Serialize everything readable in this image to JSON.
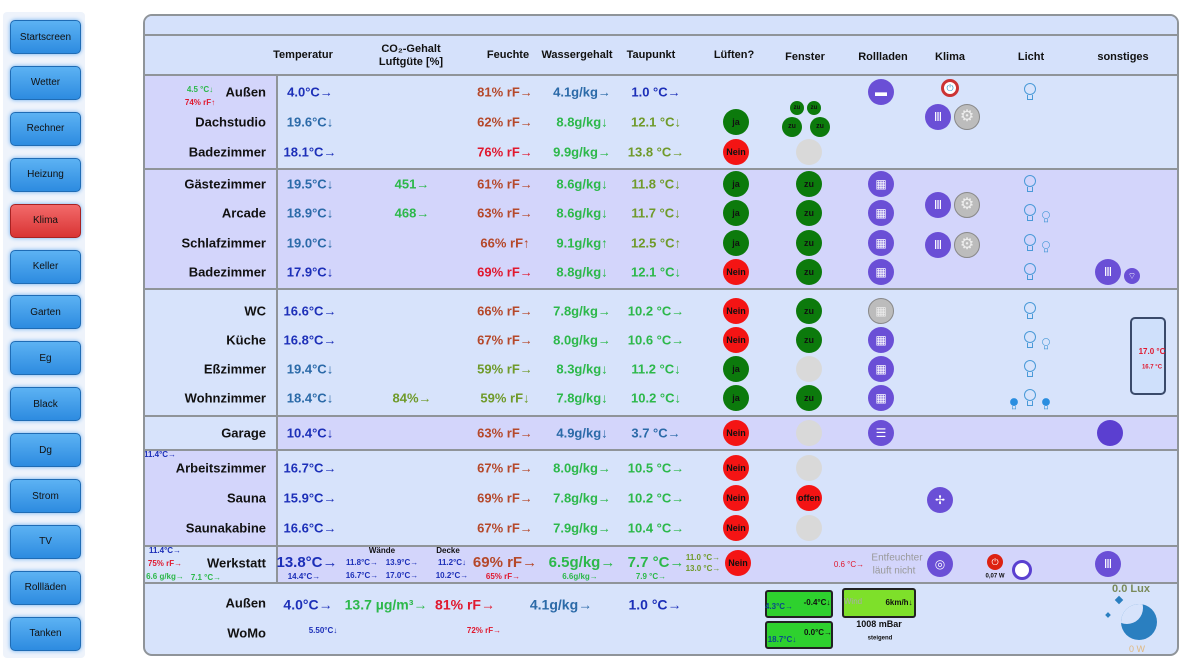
{
  "nav": [
    "Startscreen",
    "Wetter",
    "Rechner",
    "Heizung",
    "Klima",
    "Keller",
    "Garten",
    "Eg",
    "Black",
    "Dg",
    "Strom",
    "TV",
    "Rollläden",
    "Tanken"
  ],
  "nav_active": "Klima",
  "headers": {
    "temp": "Temperatur",
    "co2": "CO₂-Gehalt",
    "co2_sub": "Luftgüte [%]",
    "hum": "Feuchte",
    "water": "Wassergehalt",
    "dew": "Taupunkt",
    "luft": "Lüften?",
    "fenster": "Fenster",
    "roll": "Rollladen",
    "klima": "Klima",
    "licht": "Licht",
    "sonst": "sonstiges"
  },
  "colors": {
    "blue": "#1c2fb8",
    "teal": "#2b6aa8",
    "red": "#e0182e",
    "brown": "#b5482a",
    "green": "#2cb84a",
    "olive": "#6f9a2a",
    "ja": "#0c7a0c",
    "nein": "#f41414",
    "grey": "#d9d9d9",
    "accent": "#6a4fd6"
  },
  "rows": [
    {
      "name": "Außen",
      "temp": [
        "4.0°C→",
        "blue"
      ],
      "co2": null,
      "hum": [
        "81% rF→",
        "brown"
      ],
      "water": [
        "4.1g/kg→",
        "teal"
      ],
      "dew": [
        "1.0 °C→",
        "blue"
      ],
      "luft": null,
      "fenster": null,
      "roll": "shutter-icon",
      "klima": "power-icon",
      "licht": 1,
      "extra": [
        "4.5 °C↓",
        "74% rF↑"
      ]
    },
    {
      "name": "Dachstudio",
      "temp": [
        "19.6°C↓",
        "teal"
      ],
      "co2": null,
      "hum": [
        "62% rF→",
        "brown"
      ],
      "water": [
        "8.8g/kg↓",
        "green"
      ],
      "dew": [
        "12.1 °C↓",
        "olive"
      ],
      "luft": "ja",
      "fenster": "zu4",
      "klima": "radiator"
    },
    {
      "name": "Badezimmer",
      "temp": [
        "18.1°C→",
        "blue"
      ],
      "co2": null,
      "hum": [
        "76% rF→",
        "red"
      ],
      "water": [
        "9.9g/kg→",
        "green"
      ],
      "dew": [
        "13.8 °C→",
        "olive"
      ],
      "luft": "Nein",
      "fenster": "grey"
    },
    {
      "name": "Gästezimmer",
      "temp": [
        "19.5°C↓",
        "teal"
      ],
      "co2": [
        "451→",
        "green"
      ],
      "hum": [
        "61% rF→",
        "brown"
      ],
      "water": [
        "8.6g/kg↓",
        "green"
      ],
      "dew": [
        "11.8 °C↓",
        "olive"
      ],
      "luft": "ja",
      "fenster": "zu",
      "roll": "window-icon",
      "licht": 1
    },
    {
      "name": "Arcade",
      "temp": [
        "18.9°C↓",
        "teal"
      ],
      "co2": [
        "468→",
        "green"
      ],
      "hum": [
        "63% rF→",
        "brown"
      ],
      "water": [
        "8.6g/kg↓",
        "green"
      ],
      "dew": [
        "11.7 °C↓",
        "olive"
      ],
      "luft": "ja",
      "fenster": "zu",
      "roll": "window-icon",
      "klima": "radiator",
      "licht": 2
    },
    {
      "name": "Schlafzimmer",
      "temp": [
        "19.0°C↓",
        "teal"
      ],
      "co2": null,
      "hum": [
        "66% rF↑",
        "brown"
      ],
      "water": [
        "9.1g/kg↑",
        "green"
      ],
      "dew": [
        "12.5 °C↑",
        "olive"
      ],
      "luft": "ja",
      "fenster": "zu",
      "roll": "window-icon",
      "klima": "radiator",
      "licht": 2
    },
    {
      "name": "Badezimmer",
      "temp": [
        "17.9°C↓",
        "blue"
      ],
      "co2": null,
      "hum": [
        "69% rF→",
        "red"
      ],
      "water": [
        "8.8g/kg↓",
        "green"
      ],
      "dew": [
        "12.1 °C↓",
        "green"
      ],
      "luft": "Nein",
      "fenster": "zu",
      "roll": "window-icon",
      "licht": 1,
      "sonst": "radiator-icon"
    },
    {
      "name": "WC",
      "temp": [
        "16.6°C→",
        "blue"
      ],
      "co2": null,
      "hum": [
        "66% rF→",
        "brown"
      ],
      "water": [
        "7.8g/kg→",
        "green"
      ],
      "dew": [
        "10.2 °C→",
        "green"
      ],
      "luft": "Nein",
      "fenster": "zu",
      "roll": "window-grey-icon",
      "licht": 1
    },
    {
      "name": "Küche",
      "temp": [
        "16.8°C→",
        "blue"
      ],
      "co2": null,
      "hum": [
        "67% rF→",
        "brown"
      ],
      "water": [
        "8.0g/kg→",
        "green"
      ],
      "dew": [
        "10.6 °C→",
        "green"
      ],
      "luft": "Nein",
      "fenster": "zu",
      "roll": "window-icon",
      "licht": 2
    },
    {
      "name": "Eßzimmer",
      "temp": [
        "19.4°C↓",
        "teal"
      ],
      "co2": null,
      "hum": [
        "59% rF→",
        "olive"
      ],
      "water": [
        "8.3g/kg↓",
        "green"
      ],
      "dew": [
        "11.2 °C↓",
        "green"
      ],
      "luft": "ja",
      "fenster": "grey",
      "roll": "window-icon",
      "licht": 1
    },
    {
      "name": "Wohnzimmer",
      "temp": [
        "18.4°C↓",
        "teal"
      ],
      "co2": [
        "84%→",
        "olive"
      ],
      "hum": [
        "59% rF↓",
        "olive"
      ],
      "water": [
        "7.8g/kg↓",
        "green"
      ],
      "dew": [
        "10.2 °C↓",
        "green"
      ],
      "luft": "ja",
      "fenster": "zu",
      "roll": "window-icon",
      "licht": 3
    },
    {
      "name": "Garage",
      "temp": [
        "10.4°C↓",
        "blue"
      ],
      "co2": null,
      "hum": [
        "63% rF→",
        "brown"
      ],
      "water": [
        "4.9g/kg↓",
        "teal"
      ],
      "dew": [
        "3.7 °C→",
        "teal"
      ],
      "luft": "Nein",
      "fenster": "grey",
      "roll": "garage-door-icon",
      "sonst": "toggle-icon"
    },
    {
      "name": "Arbeitszimmer",
      "temp": [
        "16.7°C→",
        "blue"
      ],
      "co2": null,
      "hum": [
        "67% rF→",
        "brown"
      ],
      "water": [
        "8.0g/kg→",
        "green"
      ],
      "dew": [
        "10.5 °C→",
        "green"
      ],
      "luft": "Nein",
      "fenster": "grey",
      "extra": [
        "11.4°C→"
      ]
    },
    {
      "name": "Sauna",
      "temp": [
        "15.9°C→",
        "blue"
      ],
      "co2": null,
      "hum": [
        "69% rF→",
        "brown"
      ],
      "water": [
        "7.8g/kg→",
        "green"
      ],
      "dew": [
        "10.2 °C→",
        "green"
      ],
      "luft": "Nein",
      "fenster": "offen",
      "klima": "fan"
    },
    {
      "name": "Saunakabine",
      "temp": [
        "16.6°C→",
        "blue"
      ],
      "co2": null,
      "hum": [
        "67% rF→",
        "brown"
      ],
      "water": [
        "7.9g/kg→",
        "green"
      ],
      "dew": [
        "10.4 °C→",
        "green"
      ],
      "luft": "Nein",
      "fenster": "grey"
    }
  ],
  "fenster_labels": {
    "zu": "zu",
    "offen": "offen"
  },
  "fridge": {
    "top": "17.0 °C",
    "bottom": "16.7 °C"
  },
  "werkstatt": {
    "name": "Werkstatt",
    "temp": "13.8°C→",
    "temp2": "14.4°C→",
    "waende_label": "Wände",
    "waende": [
      "11.8°C→",
      "13.9°C→",
      "16.7°C→",
      "17.0°C→"
    ],
    "decke_label": "Decke",
    "decke": [
      "11.2°C↓",
      "10.2°C→"
    ],
    "hum": "69% rF→",
    "hum2": "65% rF→",
    "water": "6.5g/kg→",
    "water2": "6.6g/kg→",
    "dew": "7.7 °C→",
    "dew2": "7.9 °C→",
    "side": [
      "11.0 °C→",
      "13.0 °C→"
    ],
    "luft": "Nein",
    "left": [
      "11.4°C→",
      "75% rF→",
      "6.6 g/kg→",
      "7.1 °C→"
    ],
    "delta": "0.6 °C→",
    "entf": "Entfeuchter",
    "entf2": "läuft nicht",
    "power": "0,07 W"
  },
  "outside": {
    "name": "Außen",
    "temp": "4.0°C→",
    "pm": "13.7 µg/m³→",
    "hum": "81% rF→",
    "water": "4.1g/kg→",
    "dew": "1.0 °C→",
    "box1": [
      "4.3°C→",
      "-0.4°C↓"
    ],
    "box2": [
      "18.7°C↓",
      "0.0°C→"
    ],
    "wind_label": "Wind",
    "wind": "6km/h↓",
    "pressure": "1008 mBar",
    "trend": "steigend",
    "lux": "0.0 Lux",
    "watt": "0 W"
  },
  "womo": {
    "name": "WoMo",
    "temp": "5.50°C↓",
    "hum": "72% rF→"
  }
}
